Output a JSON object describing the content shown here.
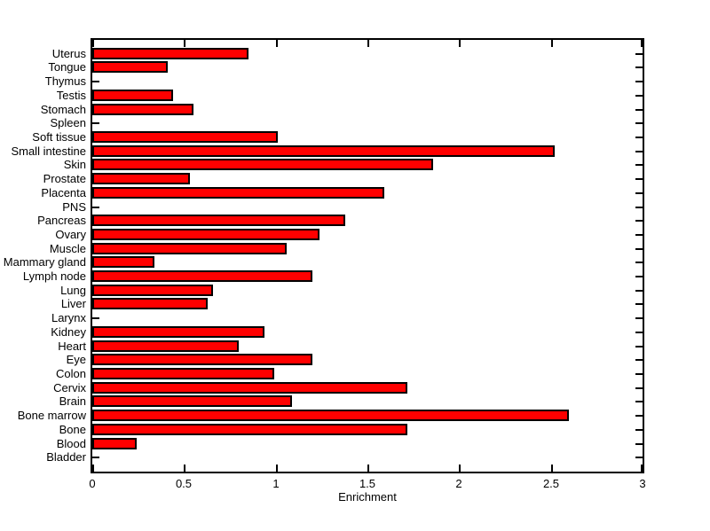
{
  "chart_data": {
    "type": "bar",
    "orientation": "horizontal",
    "title": "",
    "xlabel": "Enrichment",
    "ylabel": "",
    "xlim": [
      0,
      3
    ],
    "xticks": [
      0,
      0.5,
      1,
      1.5,
      2,
      2.5,
      3
    ],
    "xtick_labels": [
      "0",
      "0.5",
      "1",
      "1.5",
      "2",
      "2.5",
      "3"
    ],
    "grid": false,
    "legend": "none",
    "bar_fill_color": "#ff0000",
    "bar_edge_color": "#000000",
    "axis_color": "#000000",
    "background_color": "#ffffff",
    "categories": [
      "Uterus",
      "Tongue",
      "Thymus",
      "Testis",
      "Stomach",
      "Spleen",
      "Soft tissue",
      "Small intestine",
      "Skin",
      "Prostate",
      "Placenta",
      "PNS",
      "Pancreas",
      "Ovary",
      "Muscle",
      "Mammary gland",
      "Lymph node",
      "Lung",
      "Liver",
      "Larynx",
      "Kidney",
      "Heart",
      "Eye",
      "Colon",
      "Cervix",
      "Brain",
      "Bone marrow",
      "Bone",
      "Blood",
      "Bladder"
    ],
    "values": [
      0.85,
      0.41,
      0,
      0.44,
      0.55,
      0,
      1.01,
      2.52,
      1.86,
      0.53,
      1.59,
      0,
      1.38,
      1.24,
      1.06,
      0.34,
      1.2,
      0.66,
      0.63,
      0,
      0.94,
      0.8,
      1.2,
      0.99,
      1.72,
      1.09,
      2.6,
      1.72,
      0.24,
      0
    ]
  }
}
